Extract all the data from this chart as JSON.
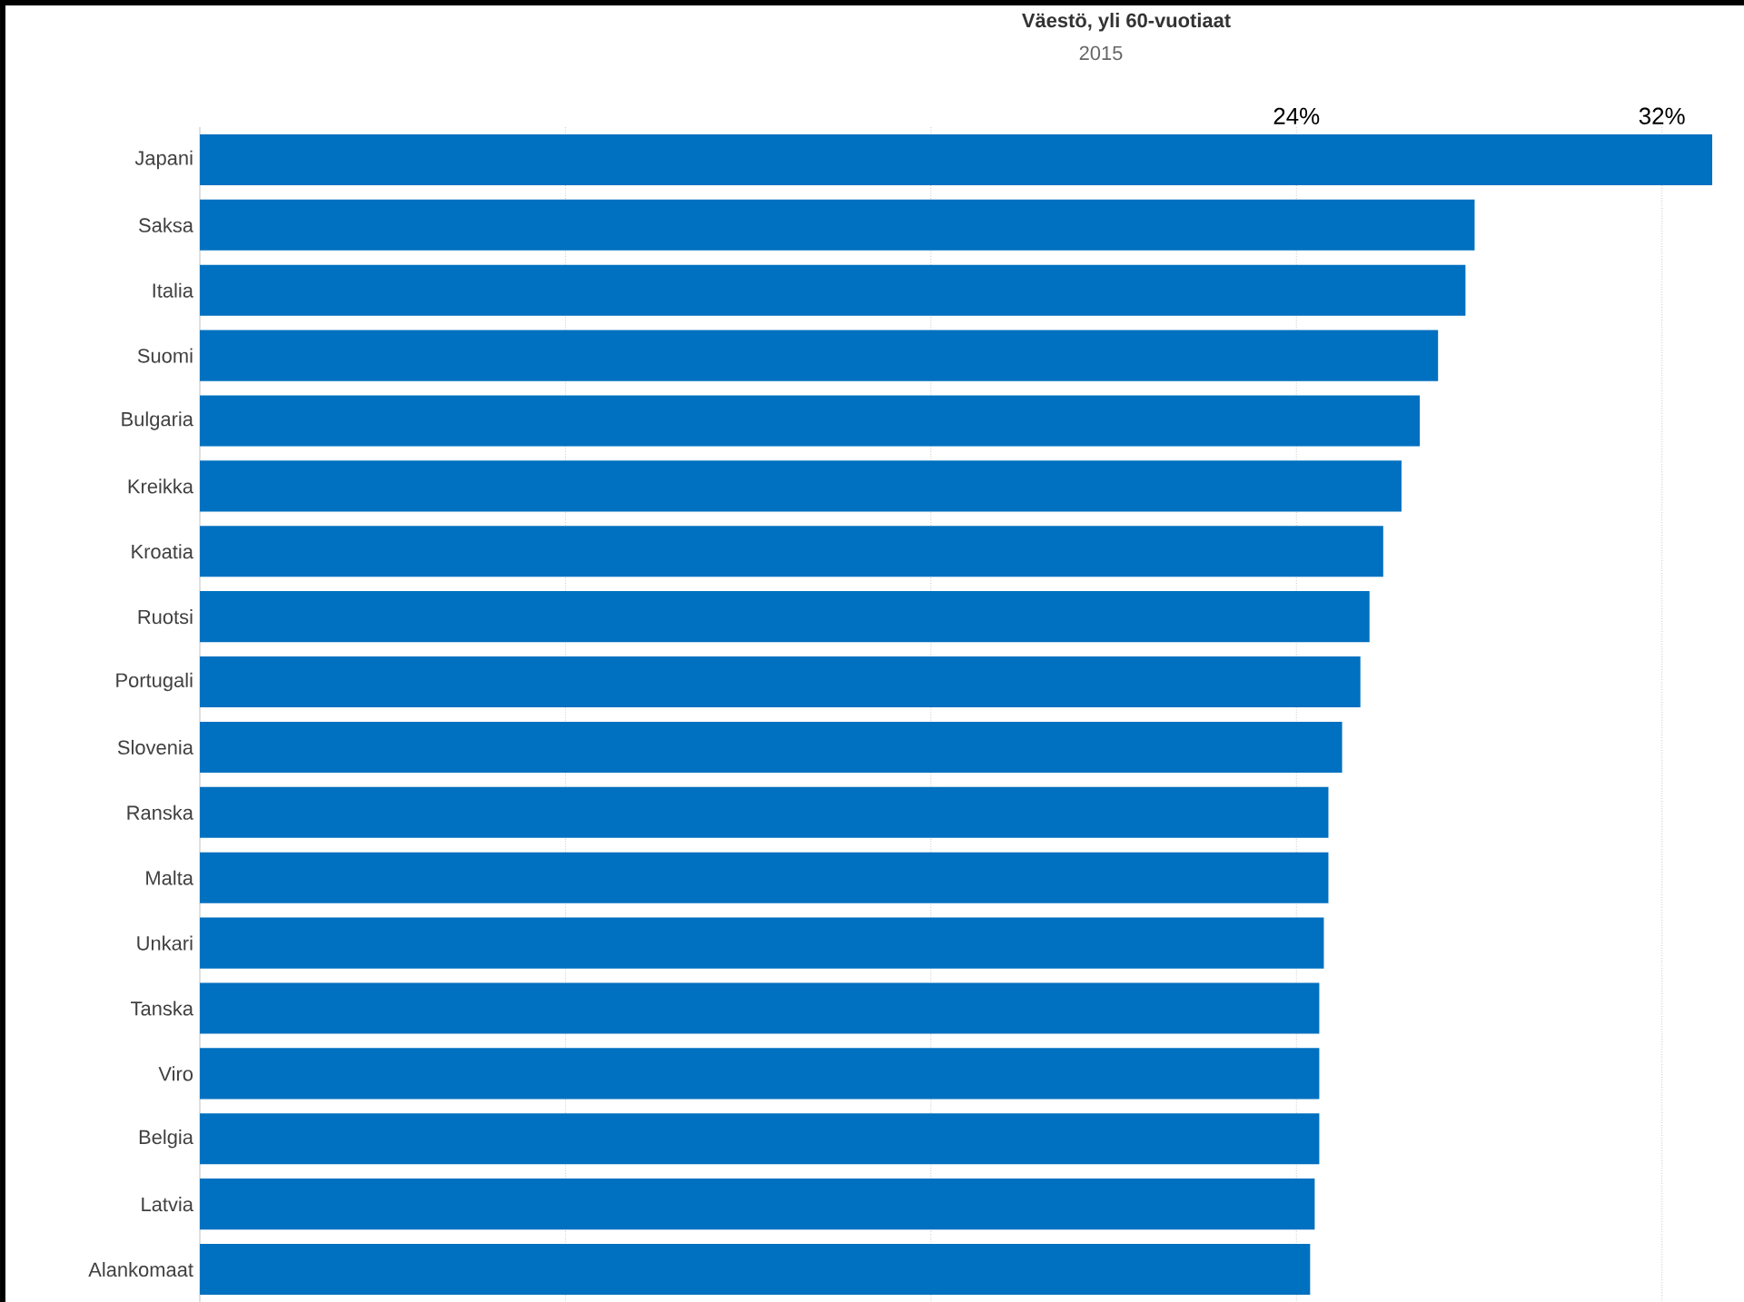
{
  "chart_data": {
    "type": "bar",
    "orientation": "horizontal",
    "title": "Väestö, yli 60-vuotiaat",
    "subtitle": "2015",
    "categories": [
      "Japani",
      "Saksa",
      "Italia",
      "Suomi",
      "Bulgaria",
      "Kreikka",
      "Kroatia",
      "Ruotsi",
      "Portugali",
      "Slovenia",
      "Ranska",
      "Malta",
      "Unkari",
      "Tanska",
      "Viro",
      "Belgia",
      "Latvia",
      "Alankomaat"
    ],
    "values": [
      33.1,
      27.9,
      27.7,
      27.1,
      26.7,
      26.3,
      25.9,
      25.6,
      25.4,
      25.0,
      24.7,
      24.7,
      24.6,
      24.5,
      24.5,
      24.5,
      24.4,
      24.3
    ],
    "color": "#0070c0",
    "xlim": [
      0,
      33.2
    ],
    "xticks": [
      {
        "value": 8,
        "label": null
      },
      {
        "value": 16,
        "label": null
      },
      {
        "value": 24,
        "label": "24%"
      },
      {
        "value": 32,
        "label": "32%"
      }
    ],
    "grid": "x"
  }
}
